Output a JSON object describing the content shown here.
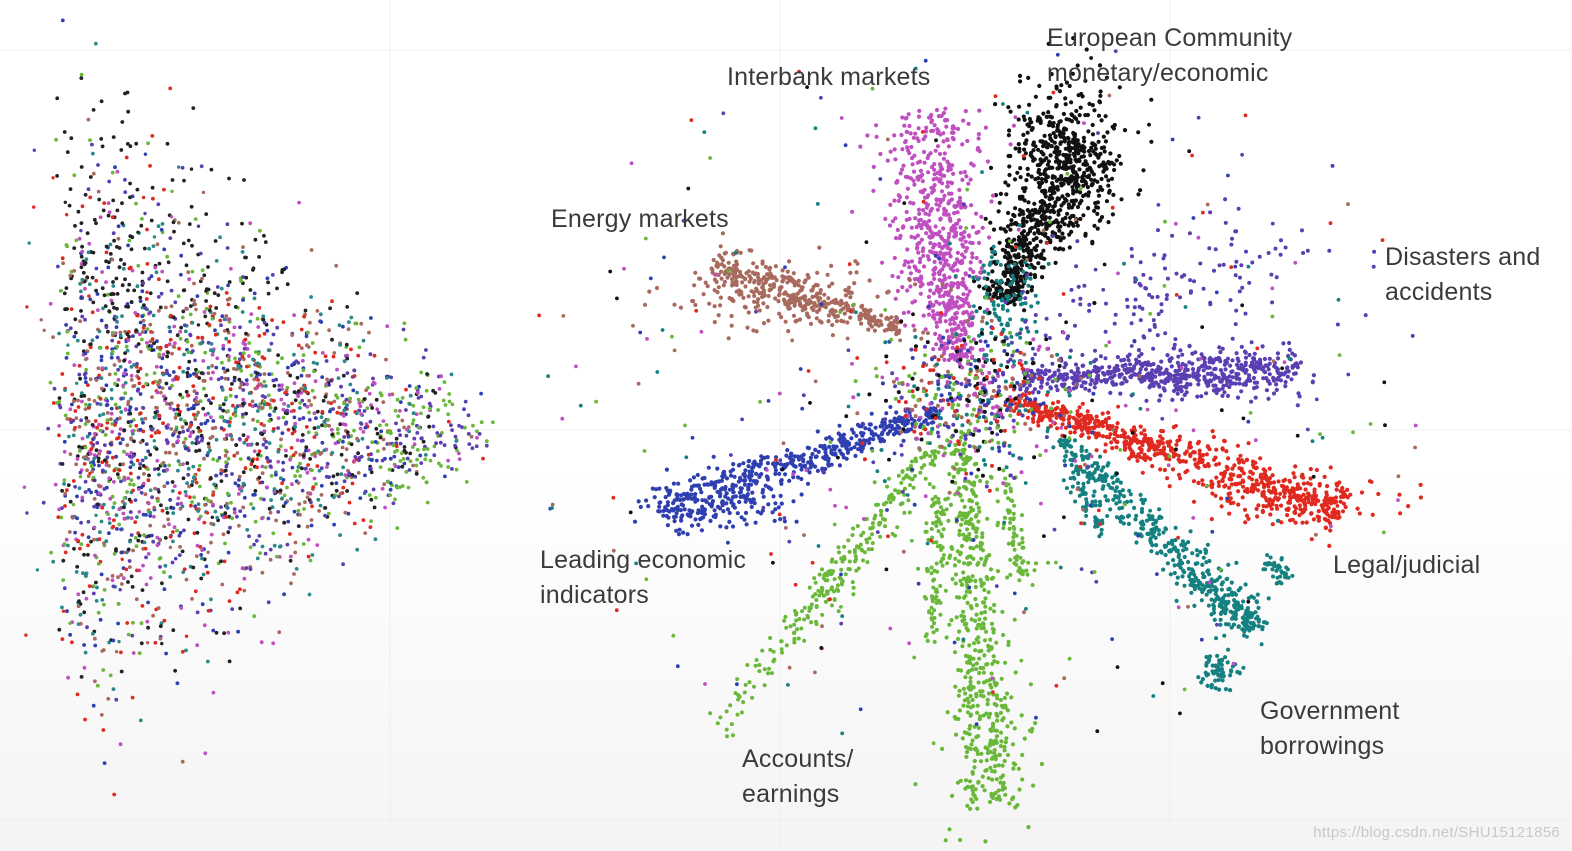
{
  "labels": {
    "european": "European Community\nmonetary/economic",
    "interbank": "Interbank markets",
    "energy": "Energy markets",
    "disasters": "Disasters and\naccidents",
    "leading": "Leading economic\nindicators",
    "legal": "Legal/judicial",
    "government": "Government\nborrowings",
    "accounts": "Accounts/\nearnings"
  },
  "watermark": "https://blog.csdn.net/SHU15121856",
  "chart_data": [
    {
      "type": "scatter",
      "panel": "left",
      "description_of_shape": "dense cone of mixed-colour points converging to a tip on the right",
      "series": [
        {
          "color": "#222222"
        },
        {
          "color": "#e02a20"
        },
        {
          "color": "#5b3fb2"
        },
        {
          "color": "#c04fc0"
        },
        {
          "color": "#2a8a8a"
        },
        {
          "color": "#6ab83a"
        },
        {
          "color": "#2f3fb0"
        },
        {
          "color": "#a86a5e"
        }
      ]
    },
    {
      "type": "scatter",
      "panel": "right",
      "series": [
        {
          "label_key": "european",
          "color": "#111111"
        },
        {
          "label_key": "interbank",
          "color": "#c04fc0"
        },
        {
          "label_key": "energy",
          "color": "#a86a5e"
        },
        {
          "label_key": "disasters",
          "color": "#5b3fb2"
        },
        {
          "label_key": "leading",
          "color": "#2f3fb0"
        },
        {
          "label_key": "legal",
          "color": "#e02a20"
        },
        {
          "label_key": "government",
          "color": "#158080"
        },
        {
          "label_key": "accounts",
          "color": "#6ab83a"
        }
      ]
    }
  ]
}
